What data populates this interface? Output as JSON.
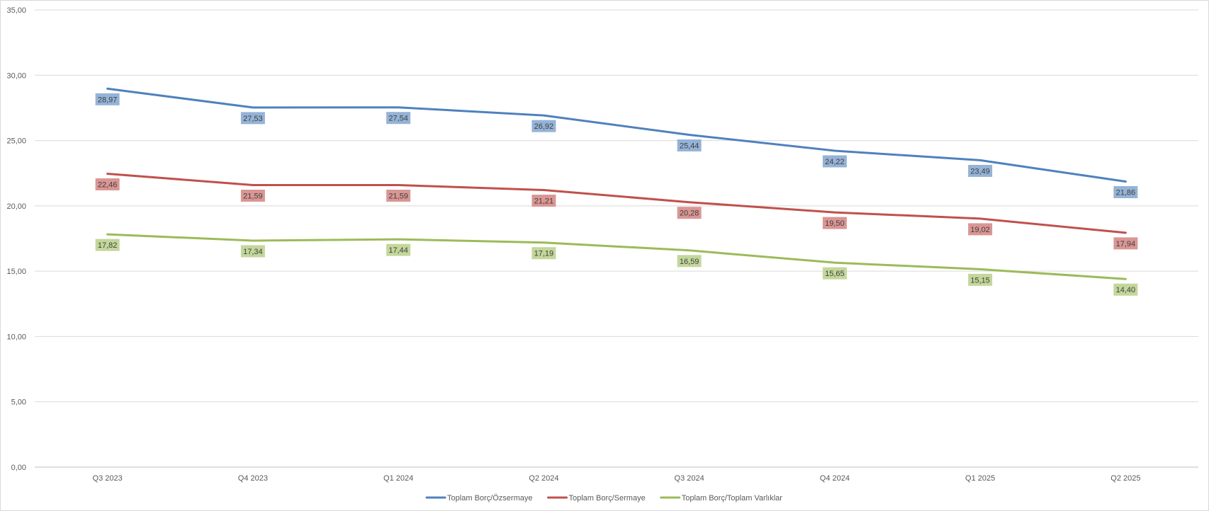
{
  "chart_data": {
    "type": "line",
    "title": "",
    "xlabel": "",
    "ylabel": "",
    "categories": [
      "Q3 2023",
      "Q4 2023",
      "Q1 2024",
      "Q2 2024",
      "Q3 2024",
      "Q4 2024",
      "Q1 2025",
      "Q2 2025"
    ],
    "ylim": [
      0,
      35
    ],
    "y_ticks": [
      0,
      5,
      10,
      15,
      20,
      25,
      30,
      35
    ],
    "y_tick_labels": [
      "0,00",
      "5,00",
      "10,00",
      "15,00",
      "20,00",
      "25,00",
      "30,00",
      "35,00"
    ],
    "grid": true,
    "legend_position": "bottom",
    "series": [
      {
        "name": "Toplam Borç/Özsermaye",
        "color": "#4f81bd",
        "label_bg": "#95b3d7",
        "values": [
          28.97,
          27.53,
          27.54,
          26.92,
          25.44,
          24.22,
          23.49,
          21.86
        ],
        "labels": [
          "28,97",
          "27,53",
          "27,54",
          "26,92",
          "25,44",
          "24,22",
          "23,49",
          "21,86"
        ]
      },
      {
        "name": "Toplam Borç/Sermaye",
        "color": "#c0504d",
        "label_bg": "#da9694",
        "values": [
          22.46,
          21.59,
          21.59,
          21.21,
          20.28,
          19.5,
          19.02,
          17.94
        ],
        "labels": [
          "22,46",
          "21,59",
          "21,59",
          "21,21",
          "20,28",
          "19,50",
          "19,02",
          "17,94"
        ]
      },
      {
        "name": "Toplam Borç/Toplam Varlıklar",
        "color": "#9bbb59",
        "label_bg": "#c4d79b",
        "values": [
          17.82,
          17.34,
          17.44,
          17.19,
          16.59,
          15.65,
          15.15,
          14.4
        ],
        "labels": [
          "17,82",
          "17,34",
          "17,44",
          "17,19",
          "16,59",
          "15,65",
          "15,15",
          "14,40"
        ]
      }
    ]
  }
}
